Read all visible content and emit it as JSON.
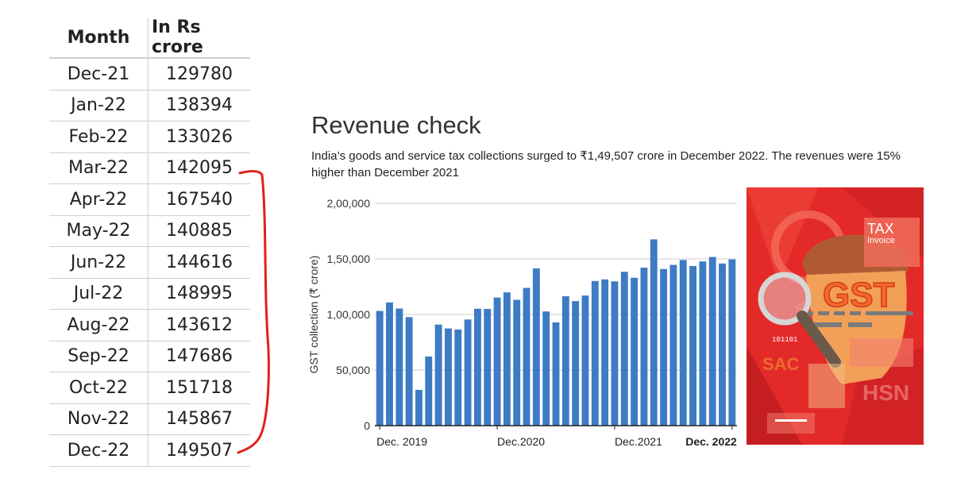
{
  "table": {
    "headers": [
      "Month",
      "In Rs crore"
    ],
    "rows": [
      [
        "Dec-21",
        "129780"
      ],
      [
        "Jan-22",
        "138394"
      ],
      [
        "Feb-22",
        "133026"
      ],
      [
        "Mar-22",
        "142095"
      ],
      [
        "Apr-22",
        "167540"
      ],
      [
        "May-22",
        "140885"
      ],
      [
        "Jun-22",
        "144616"
      ],
      [
        "Jul-22",
        "148995"
      ],
      [
        "Aug-22",
        "143612"
      ],
      [
        "Sep-22",
        "147686"
      ],
      [
        "Oct-22",
        "151718"
      ],
      [
        "Nov-22",
        "145867"
      ],
      [
        "Dec-22",
        "149507"
      ]
    ],
    "bracket_color": "#e0201c"
  },
  "chart_data": {
    "type": "bar",
    "title": "Revenue check",
    "subtitle": "India’s goods and service tax collections surged to ₹1,49,507 crore in December 2022. The revenues were 15% higher than December 2021",
    "ylabel": "GST collection (₹ crore)",
    "xlabel": "",
    "ylim": [
      0,
      200000
    ],
    "yticks": [
      0,
      50000,
      100000,
      150000,
      200000
    ],
    "ytick_labels": [
      "0",
      "50,000",
      "1,00,000",
      "1,50,000",
      "2,00,000"
    ],
    "xtick_labels": [
      {
        "label": "Dec. 2019",
        "index": 0,
        "bold": false
      },
      {
        "label": "Dec.2020",
        "index": 12,
        "bold": false
      },
      {
        "label": "Dec.2021",
        "index": 24,
        "bold": false
      },
      {
        "label": "Dec. 2022",
        "index": 36,
        "bold": true
      }
    ],
    "grid": true,
    "bar_color": "#3d7bc4",
    "values": [
      103184,
      110828,
      105366,
      97597,
      32172,
      62151,
      90917,
      87422,
      86449,
      95480,
      105155,
      104963,
      115174,
      119875,
      113143,
      123902,
      141384,
      102709,
      92849,
      116393,
      112020,
      117010,
      130127,
      131526,
      129780,
      138394,
      133026,
      142095,
      167540,
      140885,
      144616,
      148995,
      143612,
      147686,
      151718,
      145867,
      149507
    ]
  },
  "image": {
    "labels": [
      "TAX",
      "Invoice",
      "GST",
      "SAC",
      "HSN",
      "101101"
    ],
    "colors": {
      "background": "#e32a28",
      "face": "#f2a057",
      "hair": "#b05a34",
      "gst_text": "#f06a2a"
    }
  }
}
